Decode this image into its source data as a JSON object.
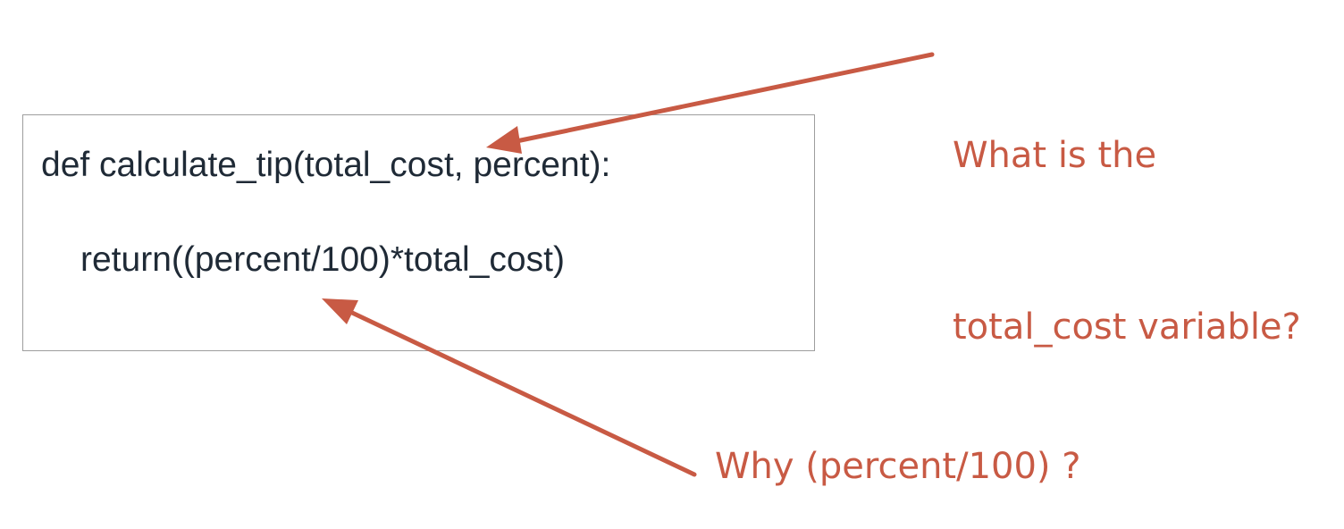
{
  "code": {
    "line_1": "def calculate_tip(total_cost, percent):",
    "line_2": "return((percent/100)*total_cost)"
  },
  "annotations": {
    "top": {
      "line_1": "What is the",
      "line_2": "total_cost variable?"
    },
    "bottom": "Why (percent/100) ?"
  },
  "colors": {
    "annotation": "#c85a44",
    "code_text": "#1f2a36",
    "box_border": "#9e9e9e"
  }
}
